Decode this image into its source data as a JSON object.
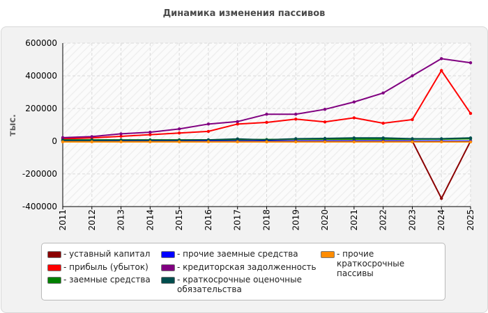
{
  "chart_data": {
    "type": "line",
    "title": "Динамика изменения пассивов",
    "ylabel": "тыс.",
    "xlabel": "",
    "ylim": [
      -400000,
      600000
    ],
    "yticks": [
      600000,
      400000,
      200000,
      0,
      -200000,
      -400000
    ],
    "ytick_labels": [
      "600000",
      "400000",
      "200000",
      "0",
      "-200000",
      "-400000"
    ],
    "categories": [
      "2011",
      "2012",
      "2013",
      "2014",
      "2015",
      "2016",
      "2017",
      "2018",
      "2019",
      "2020",
      "2021",
      "2022",
      "2023",
      "2024",
      "2025"
    ],
    "grid": true,
    "legend_position": "bottom",
    "series": [
      {
        "name": "- уставный капитал",
        "color": "#8b0000",
        "values": [
          1000,
          1000,
          1000,
          1000,
          1000,
          1000,
          1000,
          1000,
          1000,
          1000,
          1000,
          1000,
          1000,
          -350000,
          1000
        ]
      },
      {
        "name": "- прибыль (убыток)",
        "color": "#ff0000",
        "values": [
          15000,
          20000,
          30000,
          40000,
          50000,
          60000,
          105000,
          115000,
          135000,
          118000,
          143000,
          110000,
          132000,
          432000,
          170000
        ]
      },
      {
        "name": "- заемные средства",
        "color": "#008000",
        "values": [
          8000,
          8000,
          8000,
          8000,
          8000,
          8000,
          10000,
          10000,
          12000,
          12000,
          12000,
          12000,
          12000,
          12000,
          15000
        ]
      },
      {
        "name": "- прочие заемные средства",
        "color": "#0000ff",
        "values": [
          0,
          0,
          0,
          0,
          0,
          0,
          0,
          0,
          0,
          0,
          0,
          0,
          0,
          0,
          0
        ]
      },
      {
        "name": "- кредиторская задолженность",
        "color": "#800080",
        "values": [
          22000,
          28000,
          45000,
          55000,
          75000,
          105000,
          120000,
          165000,
          165000,
          195000,
          240000,
          295000,
          400000,
          505000,
          480000
        ]
      },
      {
        "name": "- краткосрочные оценочные обязательства",
        "color": "#004d4d",
        "values": [
          5000,
          5000,
          6000,
          6000,
          6000,
          8000,
          14000,
          8000,
          15000,
          17000,
          20000,
          20000,
          15000,
          15000,
          20000
        ]
      },
      {
        "name": "- прочие краткосрочные пассивы",
        "color": "#ff8c00",
        "values": [
          -4000,
          -4000,
          -4000,
          -4000,
          -4000,
          -4000,
          -4000,
          -4000,
          -4000,
          -4000,
          -4000,
          -4000,
          -4000,
          -4000,
          -4000
        ]
      }
    ]
  }
}
